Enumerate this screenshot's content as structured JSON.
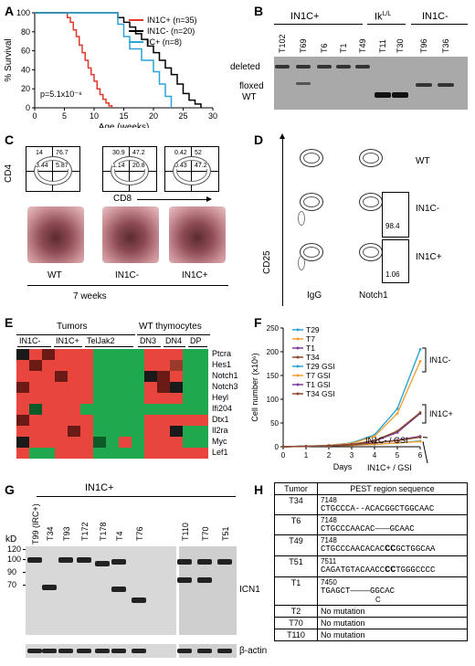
{
  "panels": {
    "a": "A",
    "b": "B",
    "c": "C",
    "d": "D",
    "e": "E",
    "f": "F",
    "g": "G",
    "h": "H"
  },
  "panelA": {
    "chart_data": {
      "type": "line",
      "xlabel": "Age (weeks)",
      "ylabel": "% Survival",
      "xlim": [
        0,
        30
      ],
      "ylim": [
        0,
        100
      ],
      "xticks": [
        0,
        5,
        10,
        15,
        20,
        25,
        30
      ],
      "yticks": [
        0,
        20,
        40,
        60,
        80,
        100
      ],
      "pvalue": "p=5.1x10⁻⁸",
      "series": [
        {
          "name": "IN1C+ (n=35)",
          "color": "#e0392b",
          "x": [
            0,
            5,
            5.5,
            6,
            6.5,
            7,
            7.5,
            8,
            8.5,
            9,
            9.5,
            10,
            10.5,
            11,
            11.5,
            12,
            12.5,
            13
          ],
          "y": [
            100,
            100,
            95,
            90,
            82,
            75,
            66,
            58,
            50,
            42,
            35,
            28,
            20,
            14,
            9,
            5,
            2,
            0
          ]
        },
        {
          "name": "IN1C- (n=20)",
          "color": "#000000",
          "x": [
            0,
            13,
            14,
            15,
            16,
            17,
            18,
            19,
            20,
            21,
            22,
            23,
            24,
            25,
            26,
            27,
            28
          ],
          "y": [
            100,
            100,
            95,
            90,
            85,
            78,
            72,
            65,
            58,
            50,
            42,
            35,
            25,
            15,
            8,
            4,
            0
          ]
        },
        {
          "name": "IC+ (n=8)",
          "color": "#2aa3d6",
          "x": [
            0,
            12,
            14,
            15,
            16,
            18,
            20,
            21,
            22,
            23
          ],
          "y": [
            100,
            100,
            88,
            75,
            62,
            50,
            38,
            25,
            12,
            0
          ]
        }
      ]
    }
  },
  "panelB": {
    "header1": "IN1C+",
    "header2": "Ik",
    "header2_sup": "L/L",
    "header3": "IN1C-",
    "lanes": [
      "T102",
      "T69",
      "T6",
      "T1",
      "T49",
      "T11",
      "T30",
      "T96",
      "T36"
    ],
    "band_labels": [
      "deleted",
      "floxed",
      "WT"
    ]
  },
  "panelC": {
    "flow": [
      {
        "q": [
          "14",
          "76.7",
          "3.44",
          "5.87"
        ]
      },
      {
        "q": [
          "30.9",
          "47.2",
          "1.14",
          "20.8"
        ]
      },
      {
        "q": [
          "0.42",
          "52",
          "0.43",
          "47.2"
        ]
      }
    ],
    "ylabel": "CD4",
    "xlabel": "CD8",
    "mice": [
      "WT",
      "IN1C-",
      "IN1C+"
    ],
    "timepoint": "7 weeks"
  },
  "panelD": {
    "ylabel": "CD25",
    "cols": [
      "IgG",
      "Notch1"
    ],
    "rows": [
      "WT",
      "IN1C-",
      "IN1C+"
    ],
    "gates": [
      "98.4",
      "1.06"
    ]
  },
  "panelE": {
    "group1": "Tumors",
    "group2": "WT thymocytes",
    "cols": [
      "IN1C-",
      "IN1C+",
      "TelJak2",
      "DN3",
      "DN4",
      "DP"
    ],
    "genes": [
      "Ptcra",
      "Hes1",
      "Notch1",
      "Notch3",
      "Heyl",
      "Ifi204",
      "Dtx1",
      "Il2ra",
      "Myc",
      "Lef1"
    ]
  },
  "panelF": {
    "chart_data": {
      "type": "line",
      "xlabel": "Days",
      "ylabel": "Cell number (x10⁶)",
      "x": [
        0,
        1,
        2,
        3,
        4,
        5,
        6
      ],
      "xlim": [
        0,
        6
      ],
      "ylim": [
        0,
        250
      ],
      "yticks": [
        0,
        50,
        100,
        150,
        200,
        250
      ],
      "series": [
        {
          "name": "T29",
          "color": "#2aa3d6",
          "values": [
            0,
            1,
            3,
            8,
            25,
            80,
            205
          ]
        },
        {
          "name": "T7",
          "color": "#f0a030",
          "values": [
            0,
            1,
            3,
            7,
            22,
            70,
            180
          ]
        },
        {
          "name": "T1",
          "color": "#7a3fa0",
          "values": [
            0,
            1,
            2,
            5,
            12,
            30,
            70
          ]
        },
        {
          "name": "T34",
          "color": "#8b4a2b",
          "values": [
            0,
            1,
            2,
            5,
            13,
            33,
            72
          ]
        },
        {
          "name": "T29 GSI",
          "color": "#2aa3d6",
          "values": [
            0,
            1,
            2,
            3,
            5,
            8,
            12
          ]
        },
        {
          "name": "T7 GSI",
          "color": "#f0a030",
          "values": [
            0,
            1,
            2,
            3,
            5,
            8,
            11
          ]
        },
        {
          "name": "T1 GSI",
          "color": "#7a3fa0",
          "values": [
            0,
            1,
            2,
            4,
            8,
            14,
            22
          ]
        },
        {
          "name": "T34 GSI",
          "color": "#8b4a2b",
          "values": [
            0,
            1,
            2,
            4,
            8,
            13,
            20
          ]
        }
      ],
      "annotations": [
        "IN1C-",
        "IN1C+",
        "IN1C- / GSI",
        "IN1C+ / GSI"
      ]
    }
  },
  "panelG": {
    "kd_label": "kD",
    "markers": [
      "120",
      "100",
      "90",
      "70"
    ],
    "header": "IN1C+",
    "lanes": [
      "T99 (IRC+)",
      "T34",
      "T93",
      "T172",
      "T178",
      "T4",
      "T76",
      "T110",
      "T70",
      "T51"
    ],
    "labels": [
      "ICN1",
      "β-actin"
    ]
  },
  "panelH": {
    "headers": [
      "Tumor",
      "PEST region sequence"
    ],
    "rows": [
      {
        "tumor": "T34",
        "pos": "7148",
        "seq": "CTGCCCA--ACACGGCTGGCAAC",
        "insert": ""
      },
      {
        "tumor": "T6",
        "pos": "7148",
        "seq": "CTGCCCAACAC———GCAAC",
        "insert": ""
      },
      {
        "tumor": "T49",
        "pos": "7148",
        "seq": "CTGCCCAACACAC",
        "bold": "CC",
        "seq2": "GCTGGCAA",
        "insert": ""
      },
      {
        "tumor": "T51",
        "pos": "7511",
        "seq": "CAGATGTACAACC",
        "bold": "CC",
        "seq2": "TGGGCCCC",
        "insert": ""
      },
      {
        "tumor": "T1",
        "pos": "7450",
        "seq": "TGAGCT————GGCAC",
        "insert": "C"
      },
      {
        "tumor": "T2",
        "text": "No mutation"
      },
      {
        "tumor": "T70",
        "text": "No mutation"
      },
      {
        "tumor": "T110",
        "text": "No mutation"
      }
    ]
  }
}
